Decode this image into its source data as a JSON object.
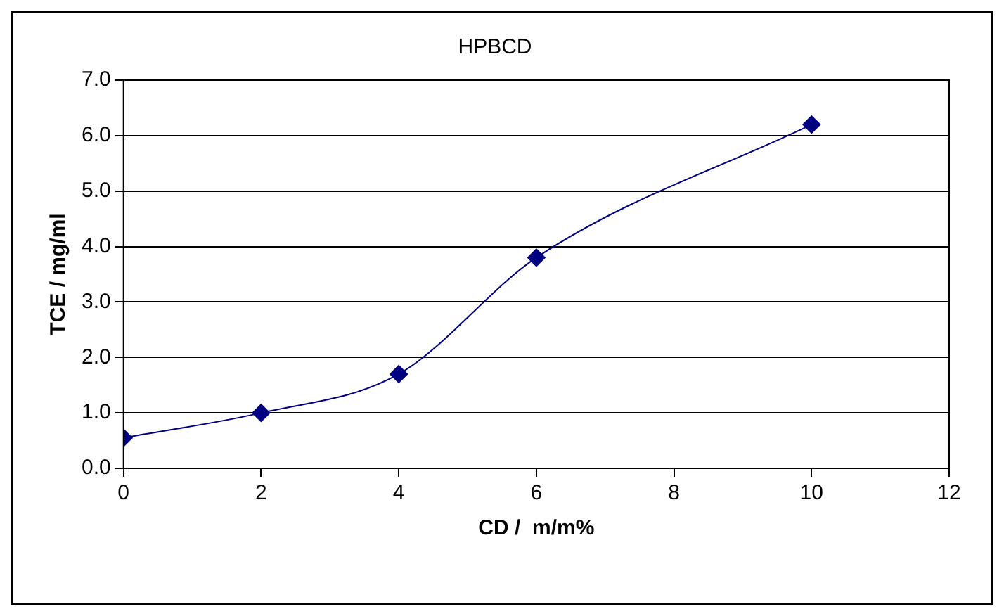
{
  "chart_data": {
    "type": "line",
    "title": "HPBCD",
    "xlabel": "CD /  m/m%",
    "ylabel": "TCE / mg/ml",
    "x": [
      0,
      2,
      4,
      6,
      10
    ],
    "series": [
      {
        "color": "#000080",
        "values": [
          0.55,
          1.0,
          1.7,
          3.8,
          6.2
        ]
      }
    ],
    "xlim": [
      0,
      12
    ],
    "xticks": [
      0,
      2,
      4,
      6,
      8,
      10,
      12
    ],
    "ylim": [
      0,
      7
    ],
    "yticks": [
      {
        "value": 0,
        "label": "0.0"
      },
      {
        "value": 1,
        "label": "1.0"
      },
      {
        "value": 2,
        "label": "2.0"
      },
      {
        "value": 3,
        "label": "3.0"
      },
      {
        "value": 4,
        "label": "4.0"
      },
      {
        "value": 5,
        "label": "5.0"
      },
      {
        "value": 6,
        "label": "6.0"
      },
      {
        "value": 7,
        "label": "7.0"
      }
    ],
    "grid": "y",
    "legend": false,
    "marker": "diamond",
    "line_style": "solid"
  }
}
